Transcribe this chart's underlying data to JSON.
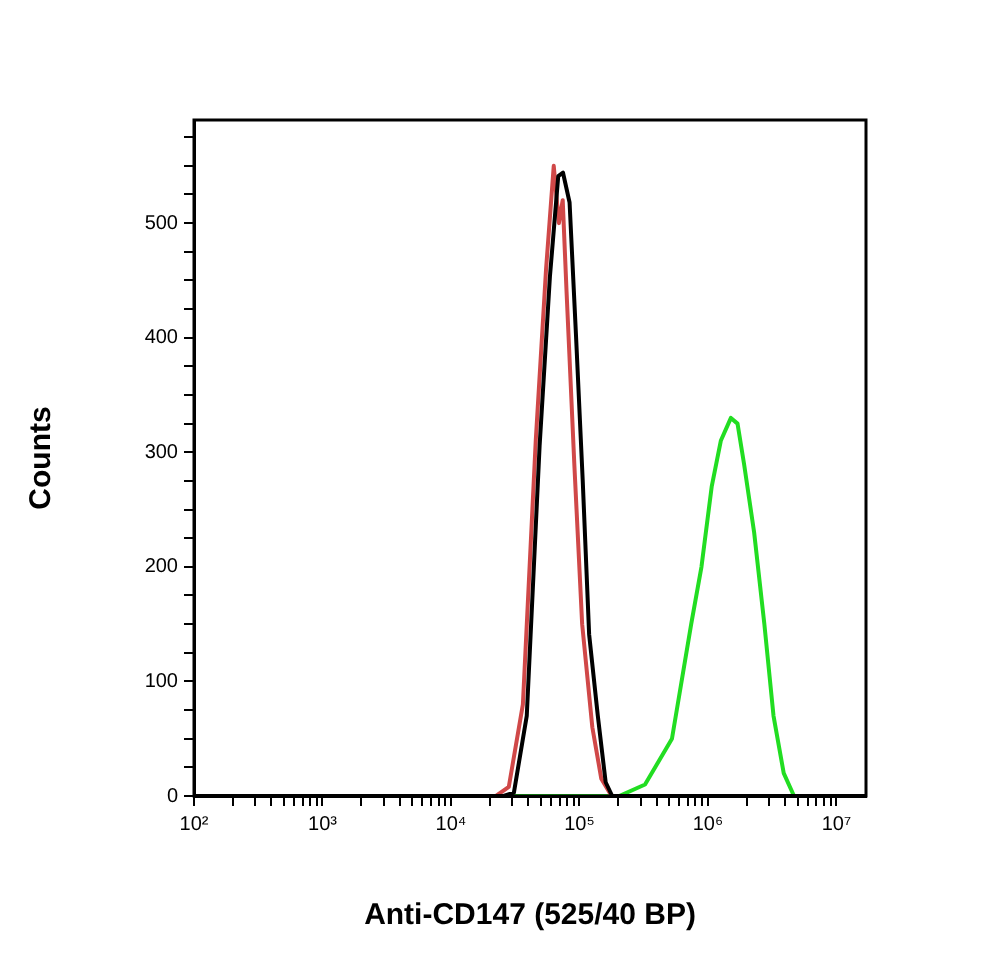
{
  "chart_data": {
    "type": "line",
    "xlabel": "Anti-CD147 (525/40 BP)",
    "ylabel": "Counts",
    "log": "x",
    "grid": false,
    "legend": false,
    "marker": "none",
    "xlim": [
      100,
      17000000
    ],
    "ylim": [
      0,
      590
    ],
    "xticks": [
      {
        "value": 100,
        "label": "10²"
      },
      {
        "value": 200,
        "label": null
      },
      {
        "value": 300,
        "label": null
      },
      {
        "value": 400,
        "label": null
      },
      {
        "value": 500,
        "label": null
      },
      {
        "value": 600,
        "label": null
      },
      {
        "value": 700,
        "label": null
      },
      {
        "value": 800,
        "label": null
      },
      {
        "value": 900,
        "label": null
      },
      {
        "value": 1000,
        "label": "10³"
      },
      {
        "value": 2000,
        "label": null
      },
      {
        "value": 3000,
        "label": null
      },
      {
        "value": 4000,
        "label": null
      },
      {
        "value": 5000,
        "label": null
      },
      {
        "value": 6000,
        "label": null
      },
      {
        "value": 7000,
        "label": null
      },
      {
        "value": 8000,
        "label": null
      },
      {
        "value": 9000,
        "label": null
      },
      {
        "value": 10000,
        "label": "10⁴"
      },
      {
        "value": 20000,
        "label": null
      },
      {
        "value": 30000,
        "label": null
      },
      {
        "value": 40000,
        "label": null
      },
      {
        "value": 50000,
        "label": null
      },
      {
        "value": 60000,
        "label": null
      },
      {
        "value": 70000,
        "label": null
      },
      {
        "value": 80000,
        "label": null
      },
      {
        "value": 90000,
        "label": null
      },
      {
        "value": 100000,
        "label": "10⁵"
      },
      {
        "value": 200000,
        "label": null
      },
      {
        "value": 300000,
        "label": null
      },
      {
        "value": 400000,
        "label": null
      },
      {
        "value": 500000,
        "label": null
      },
      {
        "value": 600000,
        "label": null
      },
      {
        "value": 700000,
        "label": null
      },
      {
        "value": 800000,
        "label": null
      },
      {
        "value": 900000,
        "label": null
      },
      {
        "value": 1000000,
        "label": "10⁶"
      },
      {
        "value": 2000000,
        "label": null
      },
      {
        "value": 3000000,
        "label": null
      },
      {
        "value": 4000000,
        "label": null
      },
      {
        "value": 5000000,
        "label": null
      },
      {
        "value": 6000000,
        "label": null
      },
      {
        "value": 7000000,
        "label": null
      },
      {
        "value": 8000000,
        "label": null
      },
      {
        "value": 9000000,
        "label": null
      },
      {
        "value": 10000000,
        "label": "10⁷"
      }
    ],
    "yticks": [
      0,
      {
        "value": 25,
        "label": null
      },
      {
        "value": 50,
        "label": null
      },
      {
        "value": 75,
        "label": null
      },
      100,
      {
        "value": 125,
        "label": null
      },
      {
        "value": 150,
        "label": null
      },
      {
        "value": 175,
        "label": null
      },
      200,
      {
        "value": 225,
        "label": null
      },
      {
        "value": 250,
        "label": null
      },
      {
        "value": 275,
        "label": null
      },
      300,
      {
        "value": 325,
        "label": null
      },
      {
        "value": 350,
        "label": null
      },
      {
        "value": 375,
        "label": null
      },
      400,
      {
        "value": 425,
        "label": null
      },
      {
        "value": 450,
        "label": null
      },
      {
        "value": 475,
        "label": null
      },
      500,
      {
        "value": 525,
        "label": null
      },
      {
        "value": 550,
        "label": null
      },
      {
        "value": 575,
        "label": null
      }
    ],
    "series": [
      {
        "color": "#000000",
        "x": [
          100,
          25700,
          30900,
          38900,
          49000,
          58900,
          68400,
          74500,
          83800,
          94200,
          106000,
          119000,
          139000,
          160000,
          180000,
          17000000
        ],
        "values": [
          0,
          0,
          3,
          70,
          306,
          453,
          541,
          544,
          518,
          400,
          276,
          141,
          70,
          12,
          0,
          0
        ]
      },
      {
        "color": "#d04848",
        "x": [
          100,
          22400,
          28200,
          36300,
          45700,
          55000,
          63100,
          69200,
          74100,
          79400,
          91200,
          105000,
          126000,
          148000,
          178000,
          17000000
        ],
        "values": [
          0,
          0,
          8,
          80,
          310,
          460,
          550,
          500,
          520,
          440,
          290,
          150,
          60,
          15,
          0,
          0
        ]
      },
      {
        "color": "#22dd22",
        "x": [
          100,
          204000,
          324000,
          525000,
          741000,
          891000,
          1070000,
          1260000,
          1510000,
          1700000,
          1910000,
          2290000,
          2750000,
          3240000,
          3890000,
          4680000,
          17000000
        ],
        "values": [
          0,
          0,
          10,
          50,
          150,
          200,
          270,
          310,
          330,
          325,
          290,
          230,
          150,
          70,
          20,
          0,
          0
        ]
      }
    ]
  }
}
